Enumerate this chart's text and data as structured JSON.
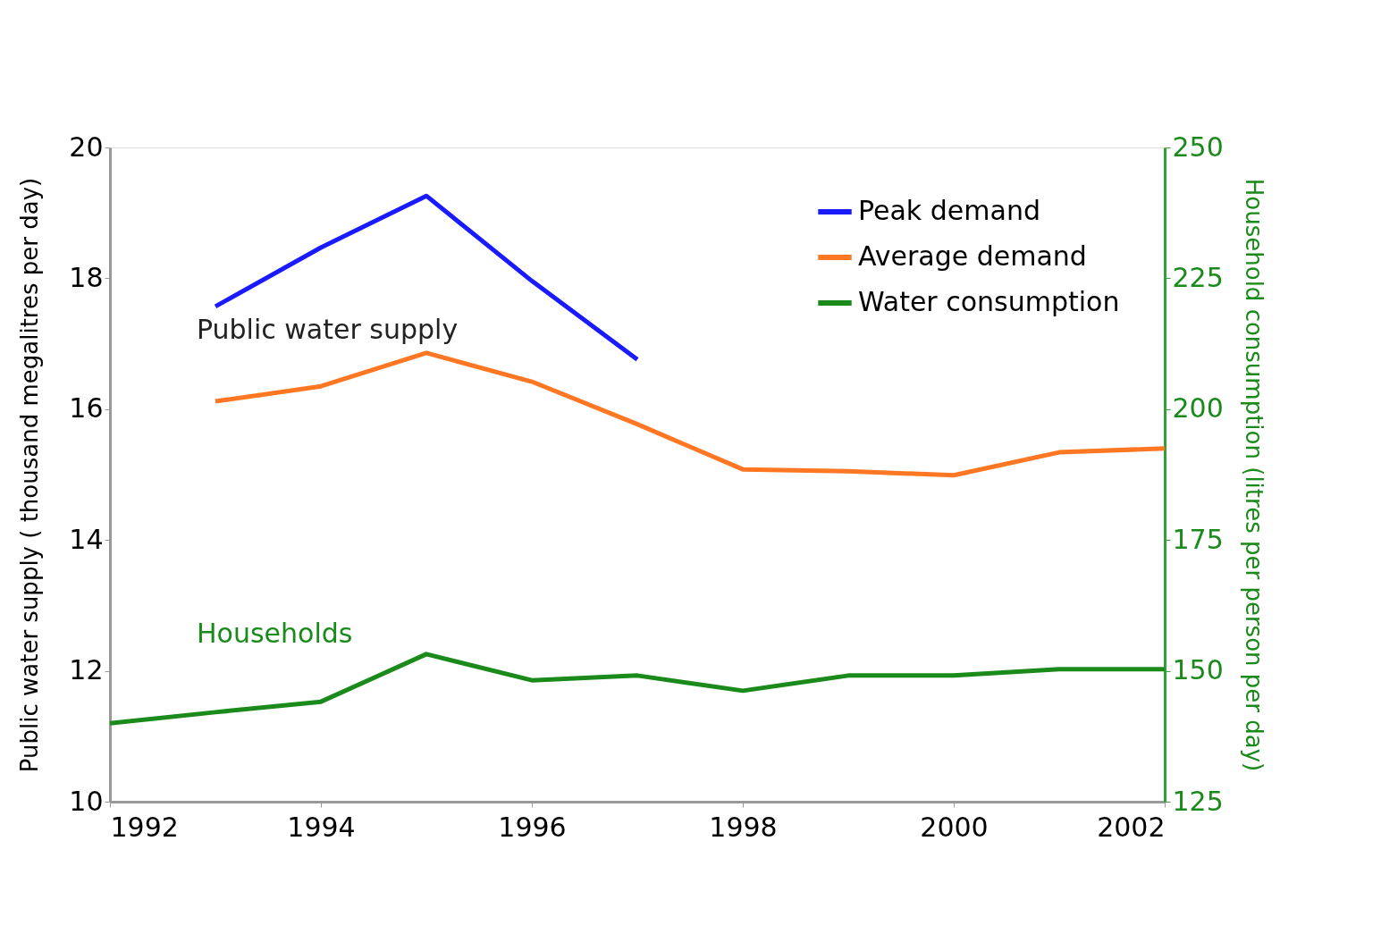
{
  "chart_data": {
    "type": "line",
    "x": [
      1992,
      1993,
      1994,
      1995,
      1996,
      1997,
      1998,
      1999,
      2000,
      2001,
      2002
    ],
    "series": [
      {
        "name": "Peak demand",
        "color": "#1a1aff",
        "values": [
          null,
          17.57,
          18.47,
          19.26,
          17.96,
          16.76,
          null,
          null,
          null,
          null,
          null
        ]
      },
      {
        "name": "Average demand",
        "color": "#ff7722",
        "values": [
          null,
          16.12,
          16.35,
          16.86,
          16.42,
          15.77,
          15.08,
          15.05,
          14.99,
          15.34,
          15.4
        ]
      },
      {
        "name": "Water consumption",
        "color": "#1a8a1a",
        "axis": "y2",
        "values": [
          140.0,
          142.1,
          144.1,
          153.2,
          148.2,
          149.1,
          146.2,
          149.1,
          149.1,
          150.3,
          150.3
        ]
      }
    ],
    "ylabel": "Public water supply ( thousand megalitres per day)",
    "y2label": "Household consumption (litres per person per day)",
    "xlim": [
      1992,
      2002
    ],
    "xticks": [
      1992,
      1994,
      1996,
      1998,
      2000,
      2002
    ],
    "ylim": [
      10,
      20
    ],
    "yticks": [
      10,
      12,
      14,
      16,
      18,
      20
    ],
    "y2lim": [
      125,
      250
    ],
    "y2ticks": [
      125,
      150,
      175,
      200,
      225,
      250
    ],
    "annotations": [
      "Public water supply",
      "Households"
    ],
    "grid": false,
    "legend": "top right",
    "line_style": "solid",
    "marker": "none"
  }
}
